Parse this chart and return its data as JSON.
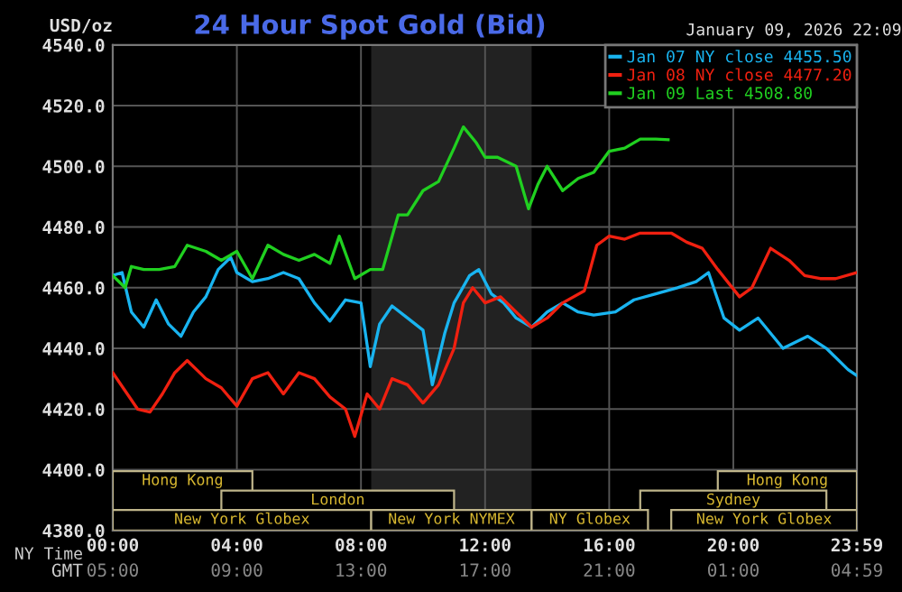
{
  "chart_data": {
    "type": "line",
    "title": "24 Hour Spot Gold (Bid)",
    "subtitle": "January 09, 2026 22:09",
    "ylabel": "USD/oz",
    "xlabel": "NY Time",
    "x2label": "GMT",
    "xlim": [
      0,
      23.983
    ],
    "xticks": [
      {
        "value": 0,
        "label": "00:00"
      },
      {
        "value": 4,
        "label": "04:00"
      },
      {
        "value": 8,
        "label": "08:00"
      },
      {
        "value": 12,
        "label": "12:00"
      },
      {
        "value": 16,
        "label": "16:00"
      },
      {
        "value": 20,
        "label": "20:00"
      },
      {
        "value": 23.983,
        "label": "23:59"
      }
    ],
    "x2lim": [
      "2026-01-09T05:00",
      "2026-01-10T04:59"
    ],
    "x2ticks": [
      {
        "value": "2026-01-09T05:00",
        "label": "05:00"
      },
      {
        "value": "2026-01-09T09:00",
        "label": "09:00"
      },
      {
        "value": "2026-01-09T13:00",
        "label": "13:00"
      },
      {
        "value": "2026-01-09T17:00",
        "label": "17:00"
      },
      {
        "value": "2026-01-09T21:00",
        "label": "21:00"
      },
      {
        "value": "2026-01-10T01:00",
        "label": "01:00"
      },
      {
        "value": "2026-01-10T04:59",
        "label": "04:59"
      }
    ],
    "ylim": [
      4380,
      4540
    ],
    "yticks": [
      {
        "value": 4380,
        "label": "4380.0"
      },
      {
        "value": 4400,
        "label": "4400.0"
      },
      {
        "value": 4420,
        "label": "4420.0"
      },
      {
        "value": 4440,
        "label": "4440.0"
      },
      {
        "value": 4460,
        "label": "4460.0"
      },
      {
        "value": 4480,
        "label": "4480.0"
      },
      {
        "value": 4500,
        "label": "4500.0"
      },
      {
        "value": 4520,
        "label": "4520.0"
      },
      {
        "value": 4540,
        "label": "4540.0"
      }
    ],
    "grid": true,
    "legend": "top right",
    "line_style": "solid",
    "marker": "none",
    "series": [
      {
        "name": "Jan 07 NY close 4455.50",
        "color": "#19b4f0",
        "x": [
          0,
          0.3,
          0.6,
          1.0,
          1.4,
          1.8,
          2.2,
          2.6,
          3.0,
          3.4,
          3.8,
          4.0,
          4.5,
          5.0,
          5.5,
          6.0,
          6.5,
          7.0,
          7.5,
          8.0,
          8.3,
          8.6,
          9.0,
          9.5,
          10.0,
          10.3,
          10.7,
          11.0,
          11.5,
          11.8,
          12.2,
          12.6,
          13.0,
          13.5,
          14.0,
          14.5,
          15.0,
          15.5,
          16.2,
          16.8,
          17.5,
          18.2,
          18.8,
          19.2,
          19.7,
          20.2,
          20.8,
          21.6,
          22.4,
          23.0,
          23.7,
          23.983
        ],
        "values": [
          4464,
          4465,
          4452,
          4447,
          4456,
          4448,
          4444,
          4452,
          4457,
          4466,
          4470,
          4465,
          4462,
          4463,
          4465,
          4463,
          4455,
          4449,
          4456,
          4455,
          4434,
          4448,
          4454,
          4450,
          4446,
          4428,
          4445,
          4455,
          4464,
          4466,
          4458,
          4455,
          4450,
          4447,
          4452,
          4455,
          4452,
          4451,
          4452,
          4456,
          4458,
          4460,
          4462,
          4465,
          4450,
          4446,
          4450,
          4440,
          4444,
          4440,
          4433,
          4431
        ]
      },
      {
        "name": "Jan 08 NY close 4477.20",
        "color": "#f02010",
        "x": [
          0,
          0.8,
          1.2,
          1.6,
          2.0,
          2.4,
          3.0,
          3.5,
          4.0,
          4.5,
          5.0,
          5.5,
          6.0,
          6.5,
          7.0,
          7.5,
          7.8,
          8.2,
          8.6,
          9.0,
          9.5,
          10.0,
          10.5,
          11.0,
          11.3,
          11.6,
          12.0,
          12.5,
          13.0,
          13.5,
          14.0,
          14.5,
          15.2,
          15.6,
          16.0,
          16.5,
          17.0,
          18.0,
          18.5,
          19.0,
          19.5,
          20.2,
          20.6,
          21.2,
          21.8,
          22.3,
          22.8,
          23.3,
          23.983
        ],
        "values": [
          4432,
          4420,
          4419,
          4425,
          4432,
          4436,
          4430,
          4427,
          4421,
          4430,
          4432,
          4425,
          4432,
          4430,
          4424,
          4420,
          4411,
          4425,
          4420,
          4430,
          4428,
          4422,
          4428,
          4440,
          4455,
          4460,
          4455,
          4457,
          4452,
          4447,
          4450,
          4455,
          4459,
          4474,
          4477,
          4476,
          4478,
          4478,
          4475,
          4473,
          4466,
          4457,
          4460,
          4473,
          4469,
          4464,
          4463,
          4463,
          4465
        ]
      },
      {
        "name": "Jan 09 Last 4508.80",
        "color": "#20d020",
        "x": [
          0,
          0.4,
          0.6,
          1.0,
          1.5,
          2.0,
          2.4,
          3.0,
          3.5,
          4.0,
          4.5,
          5.0,
          5.5,
          6.0,
          6.5,
          7.0,
          7.3,
          7.8,
          8.3,
          8.7,
          9.2,
          9.5,
          10.0,
          10.5,
          11.0,
          11.3,
          11.7,
          12.0,
          12.4,
          13.0,
          13.4,
          13.7,
          14.0,
          14.5,
          15.0,
          15.5,
          16.0,
          16.5,
          17.0,
          17.5,
          17.9
        ],
        "values": [
          4464,
          4460,
          4467,
          4466,
          4466,
          4467,
          4474,
          4472,
          4469,
          4472,
          4463,
          4474,
          4471,
          4469,
          4471,
          4468,
          4477,
          4463,
          4466,
          4466,
          4484,
          4484,
          4492,
          4495,
          4506,
          4513,
          4508,
          4503,
          4503,
          4500,
          4486,
          4494,
          4500,
          4492,
          4496,
          4498,
          4505,
          4506,
          4509,
          4509,
          4508.8
        ]
      }
    ],
    "bands": [
      {
        "axis": "x",
        "from": 8.33,
        "to": 13.5,
        "color": "#222222"
      },
      {
        "axis": "x",
        "from": 0,
        "to": 8.33,
        "label": "New York Globex"
      },
      {
        "axis": "x",
        "from": 8.33,
        "to": 13.5,
        "label": "New York NYMEX"
      },
      {
        "axis": "x",
        "from": 13.5,
        "to": 17.25,
        "label": "NY Globex"
      },
      {
        "axis": "x",
        "from": 18,
        "to": 23.983,
        "label": "New York Globex"
      },
      {
        "axis": "x",
        "from": 3.5,
        "to": 11,
        "label": "London"
      },
      {
        "axis": "x",
        "from": 17,
        "to": 23,
        "label": "Sydney"
      },
      {
        "axis": "x",
        "from": 0,
        "to": 4.5,
        "label": "Hong Kong"
      },
      {
        "axis": "x",
        "from": 19.5,
        "to": 23.983,
        "label": "Hong Kong"
      }
    ]
  }
}
